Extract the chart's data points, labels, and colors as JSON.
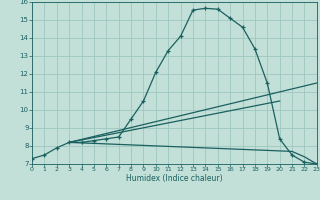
{
  "xlabel": "Humidex (Indice chaleur)",
  "bg_color": "#c2e0d8",
  "grid_color": "#9ec8c0",
  "line_color": "#1a6060",
  "xlim": [
    0,
    23
  ],
  "ylim": [
    7,
    16
  ],
  "xticks": [
    0,
    1,
    2,
    3,
    4,
    5,
    6,
    7,
    8,
    9,
    10,
    11,
    12,
    13,
    14,
    15,
    16,
    17,
    18,
    19,
    20,
    21,
    22,
    23
  ],
  "yticks": [
    7,
    8,
    9,
    10,
    11,
    12,
    13,
    14,
    15,
    16
  ],
  "curve1_x": [
    0,
    1,
    2,
    3,
    4,
    5,
    6,
    7,
    8,
    9,
    10,
    11,
    12,
    13,
    14,
    15,
    16,
    17,
    18,
    19,
    20,
    21,
    22,
    23
  ],
  "curve1_y": [
    7.3,
    7.5,
    7.9,
    8.2,
    8.2,
    8.3,
    8.4,
    8.5,
    9.5,
    10.5,
    12.1,
    13.3,
    14.1,
    15.55,
    15.65,
    15.6,
    15.1,
    14.6,
    13.4,
    11.5,
    8.4,
    7.5,
    7.1,
    7.0
  ],
  "curve2_x": [
    3,
    23
  ],
  "curve2_y": [
    8.2,
    11.5
  ],
  "curve3_x": [
    3,
    20
  ],
  "curve3_y": [
    8.2,
    10.5
  ],
  "curve4_x": [
    3,
    21,
    22,
    23
  ],
  "curve4_y": [
    8.2,
    7.7,
    7.4,
    7.0
  ]
}
